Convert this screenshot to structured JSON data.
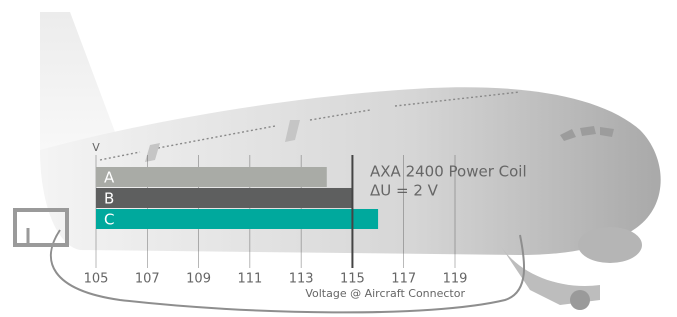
{
  "chart_data": {
    "type": "hbar",
    "categories": [
      "A",
      "B",
      "C"
    ],
    "series": [
      {
        "values": [
          114,
          115,
          116
        ],
        "colors": [
          "#a9aba6",
          "#5e5f5f",
          "#00a99d"
        ]
      }
    ],
    "xlim": [
      105,
      119
    ],
    "xticks": [
      105,
      107,
      109,
      111,
      113,
      115,
      117,
      119
    ],
    "grid": true,
    "axis_unit": "V",
    "xlabel": "Voltage @ Aircraft Connector",
    "reference_line": 115,
    "annotations": [
      "AXA 2400 Power Coil",
      "ΔU = 2 V"
    ]
  }
}
